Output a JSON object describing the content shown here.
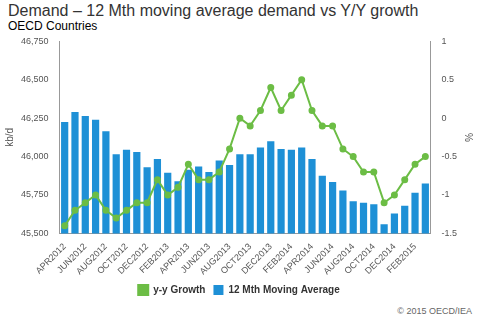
{
  "chart_data": {
    "type": "bar",
    "title": "Demand – 12 Mth moving average demand vs Y/Y growth",
    "subtitle": "OECD Countries",
    "ylabel": "kb/d",
    "y2label": "%",
    "annotation": "© 2015 OECD/IEA",
    "categories": [
      "APR2012",
      null,
      "JUN2012",
      null,
      "AUG2012",
      null,
      "OCT2012",
      null,
      "DEC2012",
      null,
      "FEB2013",
      null,
      "APR2013",
      null,
      "JUN2013",
      null,
      "AUG2013",
      null,
      "OCT2013",
      null,
      "DEC2013",
      null,
      "FEB2014",
      null,
      "APR2014",
      null,
      "JUN2014",
      null,
      "AUG2014",
      null,
      "OCT2014",
      null,
      "DEC2014",
      null,
      "FEB2015",
      null
    ],
    "series": [
      {
        "name": "12 Mth Moving Average",
        "type": "bar",
        "color": "#1e90d6",
        "values": [
          46225,
          46290,
          46265,
          46240,
          46165,
          46015,
          46045,
          46030,
          45930,
          45985,
          45895,
          45840,
          45915,
          45935,
          45900,
          45975,
          45945,
          46015,
          46015,
          46060,
          46100,
          46050,
          46045,
          46060,
          45985,
          45875,
          45835,
          45780,
          45710,
          45700,
          45690,
          45560,
          45630,
          45680,
          45765,
          45825
        ]
      },
      {
        "name": "y-y Growth",
        "type": "line",
        "axis": "y2",
        "color": "#6cbd45",
        "marker": "circle",
        "line_style": "solid",
        "values": [
          -1.4,
          -1.2,
          -1.1,
          -1.0,
          -1.2,
          -1.3,
          -1.2,
          -1.1,
          -1.1,
          -0.8,
          -1.0,
          -0.9,
          -0.6,
          -0.8,
          -0.8,
          -0.7,
          -0.4,
          0.0,
          -0.1,
          0.1,
          0.4,
          0.1,
          0.3,
          0.5,
          0.1,
          -0.1,
          -0.1,
          -0.4,
          -0.5,
          -0.7,
          -0.7,
          -1.1,
          -1.0,
          -0.8,
          -0.6,
          -0.5
        ]
      }
    ],
    "ylim": [
      45500,
      46750
    ],
    "yticks": [
      {
        "value": 45500,
        "label": "45,500"
      },
      {
        "value": 45750,
        "label": "45,750"
      },
      {
        "value": 46000,
        "label": "46,000"
      },
      {
        "value": 46250,
        "label": "46,250"
      },
      {
        "value": 46500,
        "label": "46,500"
      },
      {
        "value": 46750,
        "label": "46,750"
      }
    ],
    "y2lim": [
      -1.5,
      1
    ],
    "y2ticks": [
      -1.5,
      -1,
      -0.5,
      0,
      0.5,
      1
    ],
    "grid": false,
    "legend": "bottom"
  }
}
